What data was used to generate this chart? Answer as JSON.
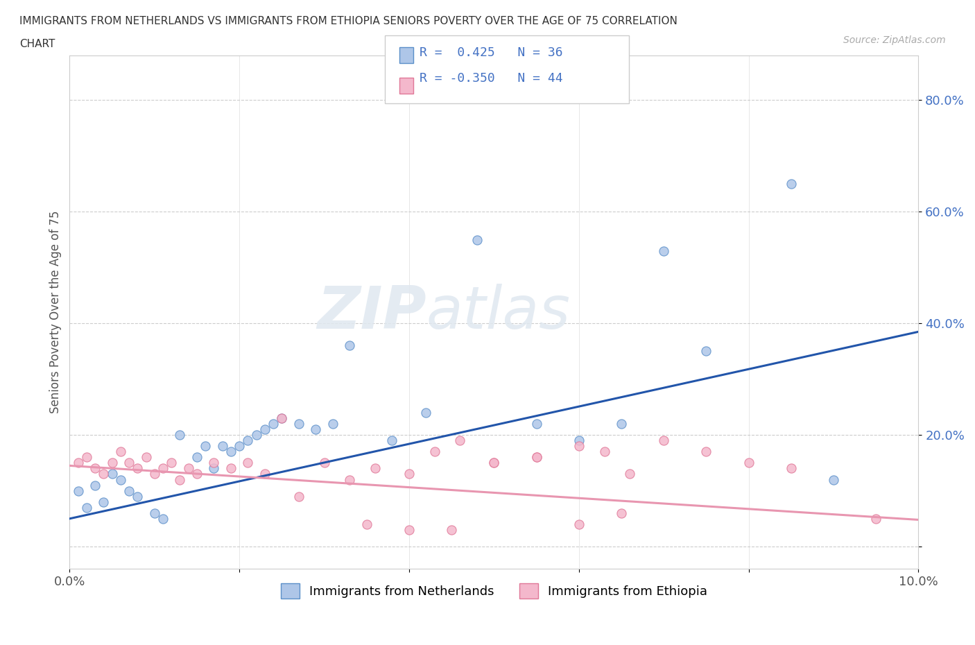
{
  "title_line1": "IMMIGRANTS FROM NETHERLANDS VS IMMIGRANTS FROM ETHIOPIA SENIORS POVERTY OVER THE AGE OF 75 CORRELATION",
  "title_line2": "CHART",
  "source_text": "Source: ZipAtlas.com",
  "ylabel": "Seniors Poverty Over the Age of 75",
  "xlim": [
    0.0,
    0.1
  ],
  "ylim": [
    -0.04,
    0.88
  ],
  "xtick_positions": [
    0.0,
    0.02,
    0.04,
    0.06,
    0.08,
    0.1
  ],
  "xtick_labels": [
    "0.0%",
    "",
    "",
    "",
    "",
    "10.0%"
  ],
  "ytick_positions": [
    0.0,
    0.2,
    0.4,
    0.6,
    0.8
  ],
  "ytick_labels": [
    "",
    "20.0%",
    "40.0%",
    "60.0%",
    "80.0%"
  ],
  "watermark_part1": "ZIP",
  "watermark_part2": "atlas",
  "netherlands_color": "#aec6e8",
  "netherlands_edge_color": "#5b8fc9",
  "ethiopia_color": "#f4b8cc",
  "ethiopia_edge_color": "#e07898",
  "netherlands_line_color": "#2255aa",
  "ethiopia_line_color": "#e896b0",
  "r_netherlands": 0.425,
  "n_netherlands": 36,
  "r_ethiopia": -0.35,
  "n_ethiopia": 44,
  "legend_label_netherlands": "Immigrants from Netherlands",
  "legend_label_ethiopia": "Immigrants from Ethiopia",
  "nl_trendline_x0": 0.0,
  "nl_trendline_y0": 0.05,
  "nl_trendline_x1": 0.1,
  "nl_trendline_y1": 0.385,
  "et_trendline_x0": 0.0,
  "et_trendline_y0": 0.145,
  "et_trendline_x1": 0.1,
  "et_trendline_y1": 0.048,
  "netherlands_scatter_x": [
    0.001,
    0.002,
    0.003,
    0.004,
    0.005,
    0.006,
    0.007,
    0.008,
    0.01,
    0.011,
    0.013,
    0.015,
    0.016,
    0.017,
    0.018,
    0.019,
    0.02,
    0.021,
    0.022,
    0.023,
    0.024,
    0.025,
    0.027,
    0.029,
    0.031,
    0.033,
    0.038,
    0.042,
    0.048,
    0.055,
    0.06,
    0.065,
    0.07,
    0.075,
    0.085,
    0.09
  ],
  "netherlands_scatter_y": [
    0.1,
    0.07,
    0.11,
    0.08,
    0.13,
    0.12,
    0.1,
    0.09,
    0.06,
    0.05,
    0.2,
    0.16,
    0.18,
    0.14,
    0.18,
    0.17,
    0.18,
    0.19,
    0.2,
    0.21,
    0.22,
    0.23,
    0.22,
    0.21,
    0.22,
    0.36,
    0.19,
    0.24,
    0.55,
    0.22,
    0.19,
    0.22,
    0.53,
    0.35,
    0.65,
    0.12
  ],
  "ethiopia_scatter_x": [
    0.001,
    0.002,
    0.003,
    0.004,
    0.005,
    0.006,
    0.007,
    0.008,
    0.009,
    0.01,
    0.011,
    0.012,
    0.013,
    0.014,
    0.015,
    0.017,
    0.019,
    0.021,
    0.023,
    0.025,
    0.027,
    0.03,
    0.033,
    0.036,
    0.04,
    0.043,
    0.046,
    0.05,
    0.055,
    0.06,
    0.063,
    0.066,
    0.07,
    0.075,
    0.08,
    0.085,
    0.06,
    0.065,
    0.035,
    0.04,
    0.045,
    0.05,
    0.055,
    0.095
  ],
  "ethiopia_scatter_y": [
    0.15,
    0.16,
    0.14,
    0.13,
    0.15,
    0.17,
    0.15,
    0.14,
    0.16,
    0.13,
    0.14,
    0.15,
    0.12,
    0.14,
    0.13,
    0.15,
    0.14,
    0.15,
    0.13,
    0.23,
    0.09,
    0.15,
    0.12,
    0.14,
    0.13,
    0.17,
    0.19,
    0.15,
    0.16,
    0.18,
    0.17,
    0.13,
    0.19,
    0.17,
    0.15,
    0.14,
    0.04,
    0.06,
    0.04,
    0.03,
    0.03,
    0.15,
    0.16,
    0.05
  ]
}
